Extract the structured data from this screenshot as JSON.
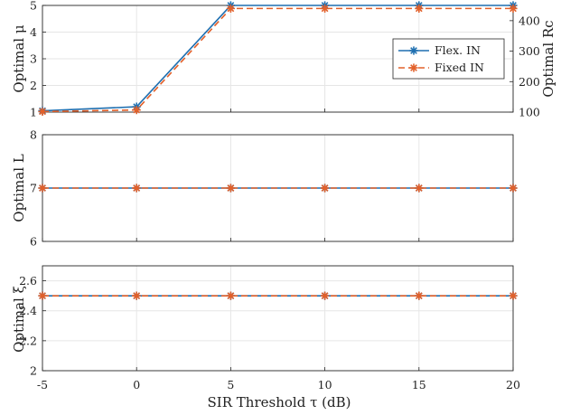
{
  "colors": {
    "flex": "#1f6fb0",
    "fixed": "#e2602a",
    "grid": "#e6e6e6",
    "axis": "#262626"
  },
  "chart_data": {
    "type": "line",
    "xlabel": "SIR Threshold τ (dB)",
    "x": [
      -5,
      0,
      5,
      10,
      15,
      20
    ],
    "xlim": [
      -5,
      20
    ],
    "xticks": [
      "-5",
      "0",
      "5",
      "10",
      "15",
      "20"
    ],
    "grid": true,
    "panels": [
      {
        "ylabel": "Optimal μ",
        "ylabel_right": "Optimal Rc",
        "ylim": [
          1,
          5
        ],
        "yticks": [
          "1",
          "2",
          "3",
          "4",
          "5"
        ],
        "ylim_right": [
          100,
          450
        ],
        "yticks_right": [
          "100",
          "200",
          "300",
          "400"
        ],
        "legend_position": "right",
        "series": [
          {
            "name": "Flex. IN",
            "values": [
              1.05,
              1.2,
              5,
              5,
              5,
              5
            ]
          },
          {
            "name": "Fixed IN",
            "values": [
              1.02,
              1.08,
              5,
              5,
              5,
              5
            ],
            "right_axis_value": 440
          }
        ]
      },
      {
        "ylabel": "Optimal L",
        "ylim": [
          6,
          8
        ],
        "yticks": [
          "6",
          "7",
          "8"
        ],
        "series": [
          {
            "name": "Flex. IN",
            "values": [
              7,
              7,
              7,
              7,
              7,
              7
            ]
          },
          {
            "name": "Fixed IN",
            "values": [
              7,
              7,
              7,
              7,
              7,
              7
            ]
          }
        ]
      },
      {
        "ylabel": "Optimal ξ",
        "ylim": [
          2,
          2.7
        ],
        "yticks": [
          "2",
          "2.2",
          "2.4",
          "2.6"
        ],
        "series": [
          {
            "name": "Flex. IN",
            "values": [
              2.5,
              2.5,
              2.5,
              2.5,
              2.5,
              2.5
            ]
          },
          {
            "name": "Fixed IN",
            "values": [
              2.5,
              2.5,
              2.5,
              2.5,
              2.5,
              2.5
            ]
          }
        ]
      }
    ]
  }
}
